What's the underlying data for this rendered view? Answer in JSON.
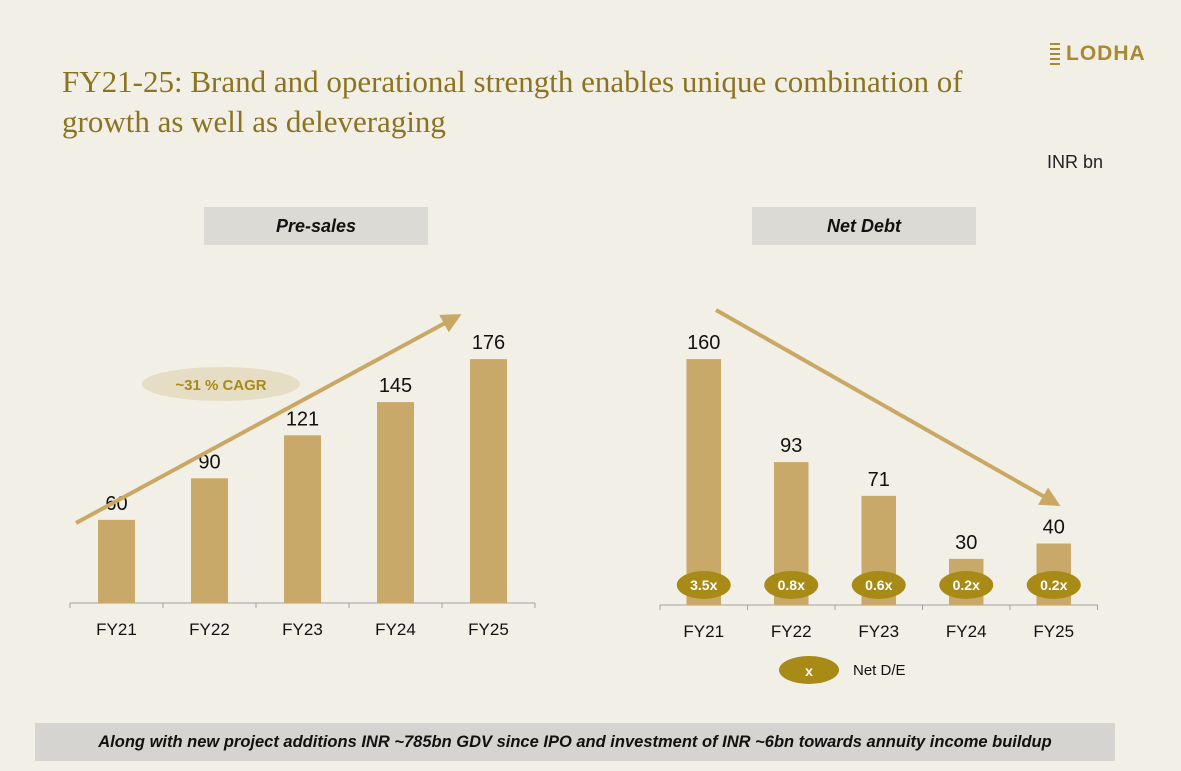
{
  "slide": {
    "title": "FY21-25: Brand and operational strength enables unique combination of growth as well as deleveraging",
    "logo_text": "LODHA",
    "unit": "INR bn",
    "footer": "Along with new project additions INR ~785bn GDV since IPO and investment of INR ~6bn towards annuity income buildup"
  },
  "colors": {
    "bar": "#c8a96a",
    "badge": "#a88a16",
    "arrow": "#c9a865",
    "title": "#8b7420",
    "cagr_bubble": "#e6ddc5",
    "cagr_text": "#a88a16"
  },
  "chart_data": [
    {
      "type": "bar",
      "title": "Pre-sales",
      "categories": [
        "FY21",
        "FY22",
        "FY23",
        "FY24",
        "FY25"
      ],
      "values": [
        60,
        90,
        121,
        145,
        176
      ],
      "ylim": [
        0,
        210
      ],
      "annotation": "~31 % CAGR",
      "trend": "up"
    },
    {
      "type": "bar",
      "title": "Net Debt",
      "categories": [
        "FY21",
        "FY22",
        "FY23",
        "FY24",
        "FY25"
      ],
      "values": [
        160,
        93,
        71,
        30,
        40
      ],
      "ylim": [
        0,
        190
      ],
      "ratios": [
        "3.5x",
        "0.8x",
        "0.6x",
        "0.2x",
        "0.2x"
      ],
      "legend": {
        "symbol": "x",
        "label": "Net D/E"
      },
      "trend": "down"
    }
  ]
}
